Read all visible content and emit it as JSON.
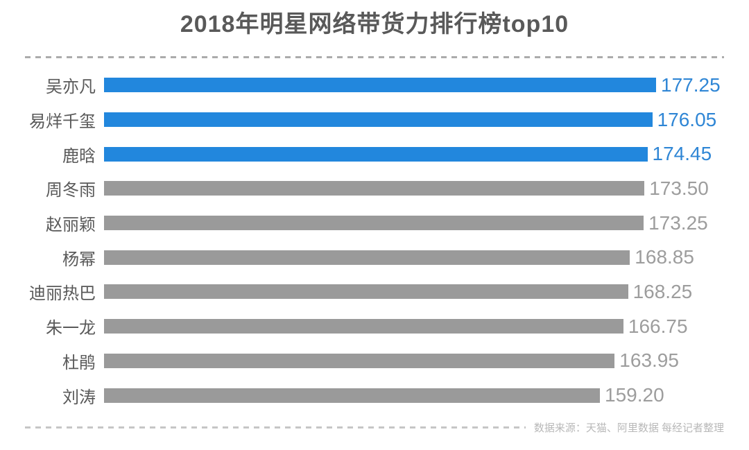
{
  "page": {
    "title": "2018年明星网络带货力排行榜top10",
    "source_note": "数据来源：天猫、阿里数据  每经记者整理"
  },
  "colors": {
    "highlight_bar": "#2287dd",
    "highlight_value": "#2f86d5",
    "normal_bar": "#9a9a9a",
    "normal_value": "#9d9d9d",
    "title_text": "#595959",
    "label_text": "#595959",
    "top_dash": "#ababab",
    "bottom_dash": "#c6c6c6",
    "source_text": "#b8b8b8"
  },
  "chart_data": {
    "type": "bar",
    "orientation": "horizontal",
    "title": "2018年明星网络带货力排行榜top10",
    "categories": [
      "吴亦凡",
      "易烊千玺",
      "鹿晗",
      "周冬雨",
      "赵丽颖",
      "杨幂",
      "迪丽热巴",
      "朱一龙",
      "杜鹃",
      "刘涛"
    ],
    "values": [
      177.25,
      176.05,
      174.45,
      173.5,
      173.25,
      168.85,
      168.25,
      166.75,
      163.95,
      159.2
    ],
    "value_decimals": 2,
    "highlight_count": 3,
    "xlabel": "",
    "ylabel": "",
    "xlim": [
      0,
      180
    ],
    "grid": false,
    "legend": false,
    "value_labels": "bar-end",
    "source": "数据来源：天猫、阿里数据  每经记者整理"
  }
}
